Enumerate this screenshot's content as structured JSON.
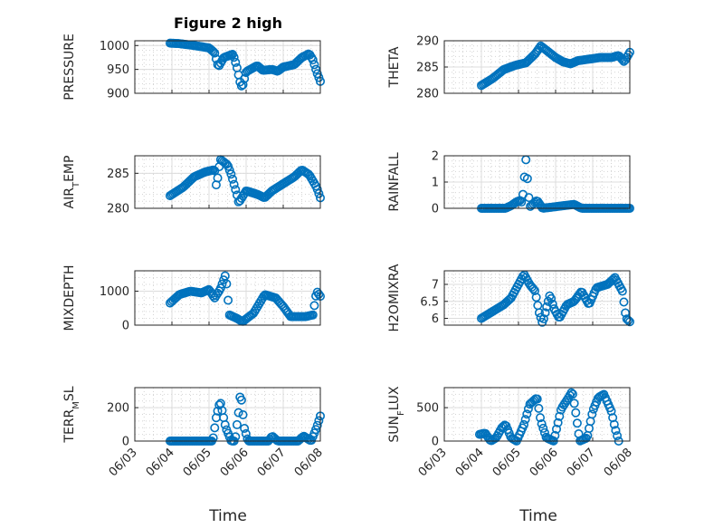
{
  "figure": {
    "title": "Figure 2 high"
  },
  "style": {
    "marker_color": "#0072BD"
  },
  "time_ticks": [
    "06/03",
    "06/04",
    "06/05",
    "06/06",
    "06/07",
    "06/08"
  ],
  "time_label": "Time",
  "chart_data": [
    {
      "type": "scatter",
      "ylabel": "PRESSURE",
      "xlim": [
        0,
        5
      ],
      "ylim": [
        900,
        1010
      ],
      "yticks": [
        900,
        950,
        1000
      ],
      "knots": [
        [
          0.95,
          1005
        ],
        [
          1.2,
          1004
        ],
        [
          1.6,
          1000
        ],
        [
          2.0,
          995
        ],
        [
          2.15,
          985
        ],
        [
          2.25,
          955
        ],
        [
          2.4,
          975
        ],
        [
          2.65,
          982
        ],
        [
          2.75,
          955
        ],
        [
          2.85,
          918
        ],
        [
          2.9,
          913
        ],
        [
          3.0,
          945
        ],
        [
          3.3,
          958
        ],
        [
          3.45,
          948
        ],
        [
          3.7,
          950
        ],
        [
          3.85,
          946
        ],
        [
          4.0,
          955
        ],
        [
          4.3,
          960
        ],
        [
          4.5,
          975
        ],
        [
          4.7,
          983
        ],
        [
          4.8,
          970
        ],
        [
          4.9,
          945
        ],
        [
          5.0,
          925
        ]
      ]
    },
    {
      "type": "scatter",
      "ylabel": "THETA",
      "xlim": [
        0,
        5
      ],
      "ylim": [
        280,
        290
      ],
      "yticks": [
        280,
        285,
        290
      ],
      "knots": [
        [
          1.0,
          281.5
        ],
        [
          1.3,
          282.8
        ],
        [
          1.6,
          284.5
        ],
        [
          1.9,
          285.3
        ],
        [
          2.2,
          285.8
        ],
        [
          2.45,
          287.5
        ],
        [
          2.6,
          289.0
        ],
        [
          2.75,
          288.2
        ],
        [
          3.0,
          286.8
        ],
        [
          3.2,
          286.0
        ],
        [
          3.4,
          285.6
        ],
        [
          3.6,
          286.2
        ],
        [
          3.9,
          286.5
        ],
        [
          4.2,
          286.8
        ],
        [
          4.5,
          286.8
        ],
        [
          4.7,
          287.2
        ],
        [
          4.85,
          286.0
        ],
        [
          5.0,
          287.8
        ]
      ]
    },
    {
      "type": "scatter",
      "ylabel": "AIR_TEMP",
      "xlim": [
        0,
        5
      ],
      "ylim": [
        280,
        287.5
      ],
      "yticks": [
        280,
        285
      ],
      "knots": [
        [
          0.95,
          281.8
        ],
        [
          1.3,
          283.0
        ],
        [
          1.6,
          284.5
        ],
        [
          1.9,
          285.2
        ],
        [
          2.15,
          285.5
        ],
        [
          2.2,
          283.0
        ],
        [
          2.3,
          287.0
        ],
        [
          2.5,
          286.2
        ],
        [
          2.6,
          284.8
        ],
        [
          2.75,
          282.0
        ],
        [
          2.8,
          280.8
        ],
        [
          3.0,
          282.5
        ],
        [
          3.3,
          282.0
        ],
        [
          3.5,
          281.5
        ],
        [
          3.7,
          282.5
        ],
        [
          4.0,
          283.5
        ],
        [
          4.3,
          284.5
        ],
        [
          4.5,
          285.5
        ],
        [
          4.7,
          284.8
        ],
        [
          4.9,
          283.0
        ],
        [
          5.0,
          281.5
        ]
      ]
    },
    {
      "type": "scatter",
      "ylabel": "RAINFALL",
      "xlim": [
        0,
        5
      ],
      "ylim": [
        0,
        2
      ],
      "yticks": [
        0,
        1,
        2
      ],
      "knots": [
        [
          1.0,
          0
        ],
        [
          1.65,
          0
        ],
        [
          1.8,
          0.1
        ],
        [
          1.95,
          0.25
        ],
        [
          2.05,
          0.3
        ],
        [
          2.1,
          0.2
        ],
        [
          2.2,
          1.85
        ],
        [
          2.3,
          0.05
        ],
        [
          2.5,
          0.3
        ],
        [
          2.65,
          0
        ],
        [
          3.5,
          0.15
        ],
        [
          3.7,
          0
        ],
        [
          5.0,
          0
        ]
      ]
    },
    {
      "type": "scatter",
      "ylabel": "MIXDEPTH",
      "xlim": [
        0,
        5
      ],
      "ylim": [
        0,
        1600
      ],
      "yticks": [
        0,
        1000
      ],
      "knots": [
        [
          0.95,
          650
        ],
        [
          1.2,
          900
        ],
        [
          1.5,
          1000
        ],
        [
          1.8,
          950
        ],
        [
          2.0,
          1050
        ],
        [
          2.15,
          800
        ],
        [
          2.3,
          1050
        ],
        [
          2.45,
          1500
        ],
        [
          2.55,
          300
        ],
        [
          2.75,
          200
        ],
        [
          2.9,
          100
        ],
        [
          3.2,
          350
        ],
        [
          3.5,
          900
        ],
        [
          3.8,
          800
        ],
        [
          4.0,
          550
        ],
        [
          4.2,
          250
        ],
        [
          4.6,
          250
        ],
        [
          4.8,
          300
        ],
        [
          4.9,
          1000
        ],
        [
          5.0,
          850
        ]
      ]
    },
    {
      "type": "scatter",
      "ylabel": "H2OMIXRA",
      "xlim": [
        0,
        5
      ],
      "ylim": [
        5.8,
        7.4
      ],
      "yticks": [
        6,
        6.5,
        7
      ],
      "knots": [
        [
          1.0,
          6.0
        ],
        [
          1.3,
          6.2
        ],
        [
          1.6,
          6.4
        ],
        [
          1.8,
          6.6
        ],
        [
          1.95,
          6.9
        ],
        [
          2.15,
          7.3
        ],
        [
          2.3,
          7.0
        ],
        [
          2.45,
          6.8
        ],
        [
          2.55,
          6.2
        ],
        [
          2.65,
          5.85
        ],
        [
          2.75,
          6.3
        ],
        [
          2.85,
          6.7
        ],
        [
          2.95,
          6.3
        ],
        [
          3.1,
          6.0
        ],
        [
          3.3,
          6.4
        ],
        [
          3.5,
          6.5
        ],
        [
          3.7,
          6.8
        ],
        [
          3.9,
          6.4
        ],
        [
          4.1,
          6.9
        ],
        [
          4.4,
          7.0
        ],
        [
          4.6,
          7.2
        ],
        [
          4.8,
          6.8
        ],
        [
          4.9,
          6.0
        ],
        [
          5.0,
          5.9
        ]
      ]
    },
    {
      "type": "scatter",
      "ylabel": "TERR_MSL",
      "xlim": [
        0,
        5
      ],
      "ylim": [
        0,
        320
      ],
      "yticks": [
        0,
        200
      ],
      "knots": [
        [
          0.95,
          0
        ],
        [
          2.1,
          0
        ],
        [
          2.2,
          150
        ],
        [
          2.3,
          240
        ],
        [
          2.45,
          80
        ],
        [
          2.6,
          0
        ],
        [
          2.7,
          0
        ],
        [
          2.8,
          180
        ],
        [
          2.85,
          300
        ],
        [
          2.95,
          80
        ],
        [
          3.05,
          0
        ],
        [
          3.6,
          0
        ],
        [
          3.7,
          30
        ],
        [
          3.85,
          0
        ],
        [
          4.4,
          0
        ],
        [
          4.55,
          30
        ],
        [
          4.75,
          0
        ],
        [
          4.9,
          80
        ],
        [
          5.0,
          150
        ]
      ]
    },
    {
      "type": "scatter",
      "ylabel": "SUN_FLUX",
      "xlim": [
        0,
        5
      ],
      "ylim": [
        0,
        800
      ],
      "yticks": [
        0,
        500
      ],
      "knots": [
        [
          0.95,
          100
        ],
        [
          1.1,
          120
        ],
        [
          1.25,
          0
        ],
        [
          1.4,
          50
        ],
        [
          1.55,
          200
        ],
        [
          1.65,
          250
        ],
        [
          1.8,
          50
        ],
        [
          1.95,
          0
        ],
        [
          2.15,
          250
        ],
        [
          2.3,
          550
        ],
        [
          2.5,
          650
        ],
        [
          2.6,
          300
        ],
        [
          2.75,
          50
        ],
        [
          2.95,
          0
        ],
        [
          3.15,
          480
        ],
        [
          3.35,
          650
        ],
        [
          3.45,
          750
        ],
        [
          3.55,
          400
        ],
        [
          3.65,
          0
        ],
        [
          3.85,
          50
        ],
        [
          4.0,
          450
        ],
        [
          4.15,
          650
        ],
        [
          4.3,
          700
        ],
        [
          4.5,
          450
        ],
        [
          4.6,
          200
        ],
        [
          4.7,
          0
        ]
      ]
    }
  ]
}
